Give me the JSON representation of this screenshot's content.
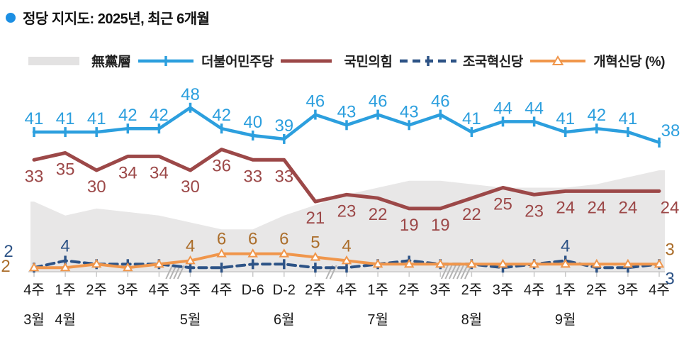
{
  "title": {
    "text": "정당 지지도: 2025년, 최근 6개월",
    "bullet_color": "#1C8FE3"
  },
  "legend": [
    {
      "label": "無黨層",
      "swatch": "area",
      "color": "#E3E2E2"
    },
    {
      "label": "더불어민주당",
      "swatch": "line-plus",
      "color": "#2C9FDE"
    },
    {
      "label": "국민의힘",
      "swatch": "line",
      "color": "#9C4848"
    },
    {
      "label": "조국혁신당",
      "swatch": "dash-plus",
      "color": "#2D5386"
    },
    {
      "label": "개혁신당 (%)",
      "swatch": "line-triangle",
      "color": "#F0964B"
    }
  ],
  "chart_data": {
    "type": "line",
    "title": "정당 지지도: 2025년, 최근 6개월",
    "unit": "%",
    "x_categories": [
      "4주",
      "1주",
      "2주",
      "3주",
      "4주",
      "3주",
      "4주",
      "D-6",
      "D-2",
      "2주",
      "4주",
      "1주",
      "2주",
      "3주",
      "2주",
      "3주",
      "4주",
      "1주",
      "2주",
      "3주",
      "4주"
    ],
    "month_labels": [
      {
        "index": 0,
        "label": "3월"
      },
      {
        "index": 1,
        "label": "4월"
      },
      {
        "index": 5,
        "label": "5월"
      },
      {
        "index": 8,
        "label": "6월"
      },
      {
        "index": 11,
        "label": "7월"
      },
      {
        "index": 14,
        "label": "8월"
      },
      {
        "index": 17,
        "label": "9월"
      }
    ],
    "axis_breaks": [
      {
        "after_index": 4,
        "strokes": 4
      },
      {
        "after_index": 9,
        "strokes": 2
      },
      {
        "after_index": 13,
        "strokes": 7
      }
    ],
    "ylim": [
      0,
      60
    ],
    "series": [
      {
        "key": "independents",
        "name": "無黨層",
        "kind": "area",
        "color": "#E8E7E7",
        "values": [
          21,
          17,
          19,
          18,
          17,
          15,
          13,
          13,
          17,
          20,
          23,
          25,
          27,
          27,
          26,
          25,
          25,
          25,
          26,
          28,
          30
        ],
        "labels": []
      },
      {
        "key": "democratic-party",
        "name": "더불어민주당",
        "kind": "line",
        "color": "#2C9FDE",
        "marker": "plus",
        "values": [
          41,
          41,
          41,
          42,
          42,
          48,
          42,
          40,
          39,
          46,
          43,
          46,
          43,
          46,
          41,
          44,
          44,
          41,
          42,
          41,
          38
        ],
        "labels": "all-above"
      },
      {
        "key": "people-power-party",
        "name": "국민의힘",
        "kind": "line",
        "color": "#9C4848",
        "marker": "none",
        "values": [
          33,
          35,
          30,
          34,
          34,
          30,
          36,
          33,
          33,
          21,
          23,
          22,
          19,
          19,
          22,
          25,
          23,
          24,
          24,
          24,
          24
        ],
        "labels": "all-below"
      },
      {
        "key": "rebuilding-korea-party",
        "name": "조국혁신당",
        "kind": "dashed",
        "color": "#2D5386",
        "marker": "plus",
        "values": [
          2,
          4,
          3,
          3,
          3,
          2,
          2,
          3,
          3,
          2,
          2,
          3,
          4,
          3,
          3,
          2,
          3,
          4,
          2,
          2,
          3
        ],
        "labels": [
          {
            "i": 0,
            "pos": "left"
          },
          {
            "i": 1,
            "pos": "above"
          },
          {
            "i": 17,
            "pos": "above"
          },
          {
            "i": 20,
            "pos": "below-right"
          }
        ]
      },
      {
        "key": "reform-party",
        "name": "개혁신당 (%)",
        "kind": "line",
        "color": "#F0964B",
        "marker": "triangle",
        "label_color": "#AB6E2B",
        "values": [
          2,
          2,
          3,
          2,
          3,
          4,
          6,
          6,
          6,
          5,
          4,
          3,
          3,
          3,
          3,
          3,
          3,
          3,
          3,
          3,
          3
        ],
        "labels": [
          {
            "i": 0,
            "pos": "left"
          },
          {
            "i": 5,
            "pos": "above"
          },
          {
            "i": 6,
            "pos": "above"
          },
          {
            "i": 7,
            "pos": "above"
          },
          {
            "i": 8,
            "pos": "above"
          },
          {
            "i": 9,
            "pos": "above"
          },
          {
            "i": 10,
            "pos": "above"
          },
          {
            "i": 20,
            "pos": "above-right"
          }
        ]
      }
    ]
  }
}
